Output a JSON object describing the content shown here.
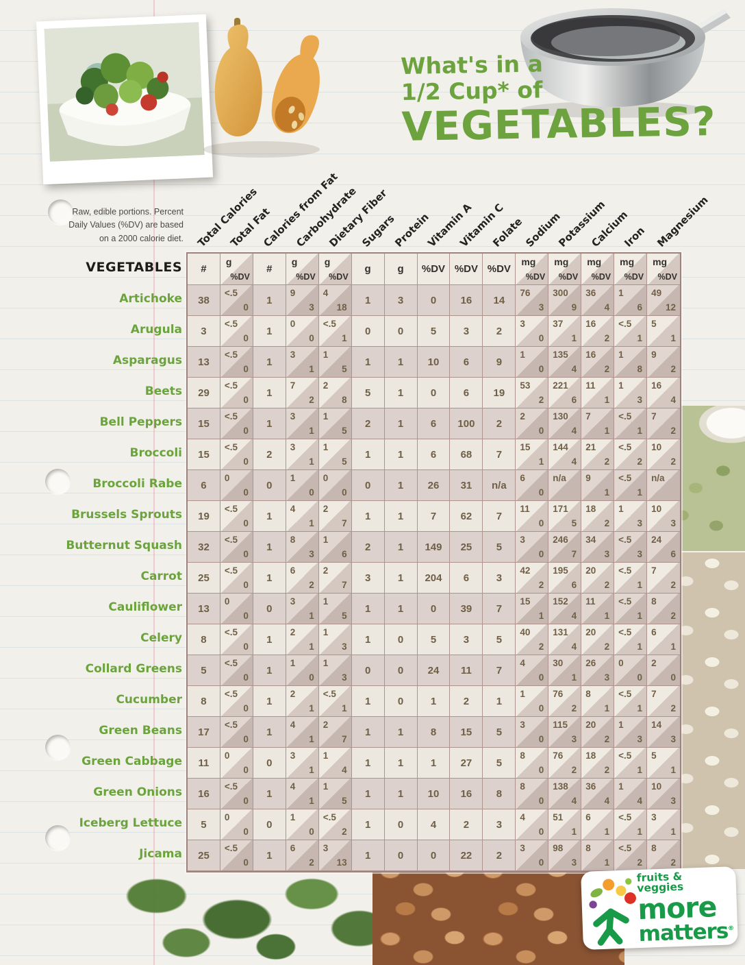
{
  "title": {
    "line1": "What's in a",
    "line2": "1/2 Cup* of",
    "line3": "VEGETABLES?"
  },
  "note": {
    "line1": "Raw, edible portions. Percent",
    "line2": "Daily Values (%DV) are based",
    "line3": "on a 2000 calorie diet."
  },
  "table": {
    "corner_label": "VEGETABLES",
    "columns": [
      {
        "label": "Total Calories",
        "unit": "#"
      },
      {
        "label": "Total Fat",
        "unit_top": "g",
        "unit_bottom": "%DV"
      },
      {
        "label": "Calories from Fat",
        "unit": "#"
      },
      {
        "label": "Carbohydrate",
        "unit_top": "g",
        "unit_bottom": "%DV"
      },
      {
        "label": "Dietary Fiber",
        "unit_top": "g",
        "unit_bottom": "%DV"
      },
      {
        "label": "Sugars",
        "unit": "g"
      },
      {
        "label": "Protein",
        "unit": "g"
      },
      {
        "label": "Vitamin A",
        "unit": "%DV"
      },
      {
        "label": "Vitamin C",
        "unit": "%DV"
      },
      {
        "label": "Folate",
        "unit": "%DV"
      },
      {
        "label": "Sodium",
        "unit_top": "mg",
        "unit_bottom": "%DV"
      },
      {
        "label": "Potassium",
        "unit_top": "mg",
        "unit_bottom": "%DV"
      },
      {
        "label": "Calcium",
        "unit_top": "mg",
        "unit_bottom": "%DV"
      },
      {
        "label": "Iron",
        "unit_top": "mg",
        "unit_bottom": "%DV"
      },
      {
        "label": "Magnesium",
        "unit_top": "mg",
        "unit_bottom": "%DV"
      }
    ],
    "rows": [
      {
        "name": "Artichoke",
        "cells": [
          [
            "38"
          ],
          [
            "<.5",
            "0"
          ],
          [
            "1"
          ],
          [
            "9",
            "3"
          ],
          [
            "4",
            "18"
          ],
          [
            "1"
          ],
          [
            "3"
          ],
          [
            "0"
          ],
          [
            "16"
          ],
          [
            "14"
          ],
          [
            "76",
            "3"
          ],
          [
            "300",
            "9"
          ],
          [
            "36",
            "4"
          ],
          [
            "1",
            "6"
          ],
          [
            "49",
            "12"
          ]
        ]
      },
      {
        "name": "Arugula",
        "cells": [
          [
            "3"
          ],
          [
            "<.5",
            "0"
          ],
          [
            "1"
          ],
          [
            "0",
            "0"
          ],
          [
            "<.5",
            "1"
          ],
          [
            "0"
          ],
          [
            "0"
          ],
          [
            "5"
          ],
          [
            "3"
          ],
          [
            "2"
          ],
          [
            "3",
            "0"
          ],
          [
            "37",
            "1"
          ],
          [
            "16",
            "2"
          ],
          [
            "<.5",
            "1"
          ],
          [
            "5",
            "1"
          ]
        ]
      },
      {
        "name": "Asparagus",
        "cells": [
          [
            "13"
          ],
          [
            "<.5",
            "0"
          ],
          [
            "1"
          ],
          [
            "3",
            "1"
          ],
          [
            "1",
            "5"
          ],
          [
            "1"
          ],
          [
            "1"
          ],
          [
            "10"
          ],
          [
            "6"
          ],
          [
            "9"
          ],
          [
            "1",
            "0"
          ],
          [
            "135",
            "4"
          ],
          [
            "16",
            "2"
          ],
          [
            "1",
            "8"
          ],
          [
            "9",
            "2"
          ]
        ]
      },
      {
        "name": "Beets",
        "cells": [
          [
            "29"
          ],
          [
            "<.5",
            "0"
          ],
          [
            "1"
          ],
          [
            "7",
            "2"
          ],
          [
            "2",
            "8"
          ],
          [
            "5"
          ],
          [
            "1"
          ],
          [
            "0"
          ],
          [
            "6"
          ],
          [
            "19"
          ],
          [
            "53",
            "2"
          ],
          [
            "221",
            "6"
          ],
          [
            "11",
            "1"
          ],
          [
            "1",
            "3"
          ],
          [
            "16",
            "4"
          ]
        ]
      },
      {
        "name": "Bell Peppers",
        "cells": [
          [
            "15"
          ],
          [
            "<.5",
            "0"
          ],
          [
            "1"
          ],
          [
            "3",
            "1"
          ],
          [
            "1",
            "5"
          ],
          [
            "2"
          ],
          [
            "1"
          ],
          [
            "6"
          ],
          [
            "100"
          ],
          [
            "2"
          ],
          [
            "2",
            "0"
          ],
          [
            "130",
            "4"
          ],
          [
            "7",
            "1"
          ],
          [
            "<.5",
            "1"
          ],
          [
            "7",
            "2"
          ]
        ]
      },
      {
        "name": "Broccoli",
        "cells": [
          [
            "15"
          ],
          [
            "<.5",
            "0"
          ],
          [
            "2"
          ],
          [
            "3",
            "1"
          ],
          [
            "1",
            "5"
          ],
          [
            "1"
          ],
          [
            "1"
          ],
          [
            "6"
          ],
          [
            "68"
          ],
          [
            "7"
          ],
          [
            "15",
            "1"
          ],
          [
            "144",
            "4"
          ],
          [
            "21",
            "2"
          ],
          [
            "<.5",
            "2"
          ],
          [
            "10",
            "2"
          ]
        ]
      },
      {
        "name": "Broccoli Rabe",
        "cells": [
          [
            "6"
          ],
          [
            "0",
            "0"
          ],
          [
            "0"
          ],
          [
            "1",
            "0"
          ],
          [
            "0",
            "0"
          ],
          [
            "0"
          ],
          [
            "1"
          ],
          [
            "26"
          ],
          [
            "31"
          ],
          [
            "n/a"
          ],
          [
            "6",
            "0"
          ],
          [
            "n/a",
            ""
          ],
          [
            "9",
            "1"
          ],
          [
            "<.5",
            "1"
          ],
          [
            "n/a",
            ""
          ]
        ]
      },
      {
        "name": "Brussels Sprouts",
        "cells": [
          [
            "19"
          ],
          [
            "<.5",
            "0"
          ],
          [
            "1"
          ],
          [
            "4",
            "1"
          ],
          [
            "2",
            "7"
          ],
          [
            "1"
          ],
          [
            "1"
          ],
          [
            "7"
          ],
          [
            "62"
          ],
          [
            "7"
          ],
          [
            "11",
            "0"
          ],
          [
            "171",
            "5"
          ],
          [
            "18",
            "2"
          ],
          [
            "1",
            "3"
          ],
          [
            "10",
            "3"
          ]
        ]
      },
      {
        "name": "Butternut Squash",
        "cells": [
          [
            "32"
          ],
          [
            "<.5",
            "0"
          ],
          [
            "1"
          ],
          [
            "8",
            "3"
          ],
          [
            "1",
            "6"
          ],
          [
            "2"
          ],
          [
            "1"
          ],
          [
            "149"
          ],
          [
            "25"
          ],
          [
            "5"
          ],
          [
            "3",
            "0"
          ],
          [
            "246",
            "7"
          ],
          [
            "34",
            "3"
          ],
          [
            "<.5",
            "3"
          ],
          [
            "24",
            "6"
          ]
        ]
      },
      {
        "name": "Carrot",
        "cells": [
          [
            "25"
          ],
          [
            "<.5",
            "0"
          ],
          [
            "1"
          ],
          [
            "6",
            "2"
          ],
          [
            "2",
            "7"
          ],
          [
            "3"
          ],
          [
            "1"
          ],
          [
            "204"
          ],
          [
            "6"
          ],
          [
            "3"
          ],
          [
            "42",
            "2"
          ],
          [
            "195",
            "6"
          ],
          [
            "20",
            "2"
          ],
          [
            "<.5",
            "1"
          ],
          [
            "7",
            "2"
          ]
        ]
      },
      {
        "name": "Cauliflower",
        "cells": [
          [
            "13"
          ],
          [
            "0",
            "0"
          ],
          [
            "0"
          ],
          [
            "3",
            "1"
          ],
          [
            "1",
            "5"
          ],
          [
            "1"
          ],
          [
            "1"
          ],
          [
            "0"
          ],
          [
            "39"
          ],
          [
            "7"
          ],
          [
            "15",
            "1"
          ],
          [
            "152",
            "4"
          ],
          [
            "11",
            "1"
          ],
          [
            "<.5",
            "1"
          ],
          [
            "8",
            "2"
          ]
        ]
      },
      {
        "name": "Celery",
        "cells": [
          [
            "8"
          ],
          [
            "<.5",
            "0"
          ],
          [
            "1"
          ],
          [
            "2",
            "1"
          ],
          [
            "1",
            "3"
          ],
          [
            "1"
          ],
          [
            "0"
          ],
          [
            "5"
          ],
          [
            "3"
          ],
          [
            "5"
          ],
          [
            "40",
            "2"
          ],
          [
            "131",
            "4"
          ],
          [
            "20",
            "2"
          ],
          [
            "<.5",
            "1"
          ],
          [
            "6",
            "1"
          ]
        ]
      },
      {
        "name": "Collard Greens",
        "cells": [
          [
            "5"
          ],
          [
            "<.5",
            "0"
          ],
          [
            "1"
          ],
          [
            "1",
            "0"
          ],
          [
            "1",
            "3"
          ],
          [
            "0"
          ],
          [
            "0"
          ],
          [
            "24"
          ],
          [
            "11"
          ],
          [
            "7"
          ],
          [
            "4",
            "0"
          ],
          [
            "30",
            "1"
          ],
          [
            "26",
            "3"
          ],
          [
            "0",
            "0"
          ],
          [
            "2",
            "0"
          ]
        ]
      },
      {
        "name": "Cucumber",
        "cells": [
          [
            "8"
          ],
          [
            "<.5",
            "0"
          ],
          [
            "1"
          ],
          [
            "2",
            "1"
          ],
          [
            "<.5",
            "1"
          ],
          [
            "1"
          ],
          [
            "0"
          ],
          [
            "1"
          ],
          [
            "2"
          ],
          [
            "1"
          ],
          [
            "1",
            "0"
          ],
          [
            "76",
            "2"
          ],
          [
            "8",
            "1"
          ],
          [
            "<.5",
            "1"
          ],
          [
            "7",
            "2"
          ]
        ]
      },
      {
        "name": "Green Beans",
        "cells": [
          [
            "17"
          ],
          [
            "<.5",
            "0"
          ],
          [
            "1"
          ],
          [
            "4",
            "1"
          ],
          [
            "2",
            "7"
          ],
          [
            "1"
          ],
          [
            "1"
          ],
          [
            "8"
          ],
          [
            "15"
          ],
          [
            "5"
          ],
          [
            "3",
            "0"
          ],
          [
            "115",
            "3"
          ],
          [
            "20",
            "2"
          ],
          [
            "1",
            "3"
          ],
          [
            "14",
            "3"
          ]
        ]
      },
      {
        "name": "Green Cabbage",
        "cells": [
          [
            "11"
          ],
          [
            "0",
            "0"
          ],
          [
            "0"
          ],
          [
            "3",
            "1"
          ],
          [
            "1",
            "4"
          ],
          [
            "1"
          ],
          [
            "1"
          ],
          [
            "1"
          ],
          [
            "27"
          ],
          [
            "5"
          ],
          [
            "8",
            "0"
          ],
          [
            "76",
            "2"
          ],
          [
            "18",
            "2"
          ],
          [
            "<.5",
            "1"
          ],
          [
            "5",
            "1"
          ]
        ]
      },
      {
        "name": "Green Onions",
        "cells": [
          [
            "16"
          ],
          [
            "<.5",
            "0"
          ],
          [
            "1"
          ],
          [
            "4",
            "1"
          ],
          [
            "1",
            "5"
          ],
          [
            "1"
          ],
          [
            "1"
          ],
          [
            "10"
          ],
          [
            "16"
          ],
          [
            "8"
          ],
          [
            "8",
            "0"
          ],
          [
            "138",
            "4"
          ],
          [
            "36",
            "4"
          ],
          [
            "1",
            "4"
          ],
          [
            "10",
            "3"
          ]
        ]
      },
      {
        "name": "Iceberg Lettuce",
        "cells": [
          [
            "5"
          ],
          [
            "0",
            "0"
          ],
          [
            "0"
          ],
          [
            "1",
            "0"
          ],
          [
            "<.5",
            "2"
          ],
          [
            "1"
          ],
          [
            "0"
          ],
          [
            "4"
          ],
          [
            "2"
          ],
          [
            "3"
          ],
          [
            "4",
            "0"
          ],
          [
            "51",
            "1"
          ],
          [
            "6",
            "1"
          ],
          [
            "<.5",
            "1"
          ],
          [
            "3",
            "1"
          ]
        ]
      },
      {
        "name": "Jicama",
        "cells": [
          [
            "25"
          ],
          [
            "<.5",
            "0"
          ],
          [
            "1"
          ],
          [
            "6",
            "2"
          ],
          [
            "3",
            "13"
          ],
          [
            "1"
          ],
          [
            "0"
          ],
          [
            "0"
          ],
          [
            "22"
          ],
          [
            "2"
          ],
          [
            "3",
            "0"
          ],
          [
            "98",
            "3"
          ],
          [
            "8",
            "1"
          ],
          [
            "<.5",
            "2"
          ],
          [
            "8",
            "2"
          ]
        ]
      }
    ]
  },
  "logo": {
    "tagline": "fruits & veggies",
    "word1": "more",
    "word2": "matters",
    "reg": "®"
  },
  "colors": {
    "title_green": "#6da33f",
    "row_label_green": "#6ba33c",
    "logo_green": "#189a48",
    "cell_text": "#6f5f46",
    "grid_border": "#ad938e",
    "row_dark_bg": "#dcd1cc",
    "row_light_bg": "#ece8e0"
  }
}
